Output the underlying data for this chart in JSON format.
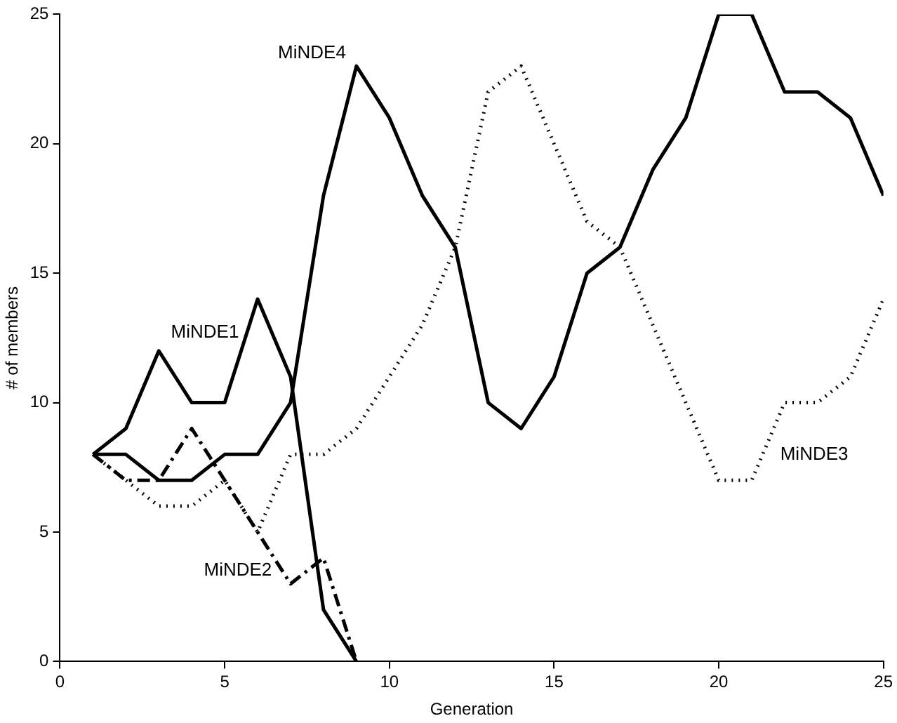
{
  "chart_data": {
    "type": "line",
    "xlabel": "Generation",
    "ylabel": "# of members",
    "x": [
      1,
      2,
      3,
      4,
      5,
      6,
      7,
      8,
      9,
      10,
      11,
      12,
      13,
      14,
      15,
      16,
      17,
      18,
      19,
      20,
      21,
      22,
      23,
      24,
      25
    ],
    "series": [
      {
        "name": "MiNDE1",
        "color": "#000000",
        "line_style": "solid",
        "values": [
          8,
          9,
          12,
          10,
          10,
          14,
          11,
          2,
          0,
          null,
          null,
          null,
          null,
          null,
          null,
          null,
          null,
          null,
          null,
          null,
          null,
          null,
          null,
          null,
          null
        ]
      },
      {
        "name": "MiNDE2",
        "color": "#000000",
        "line_style": "dashed",
        "values": [
          8,
          7,
          7,
          9,
          7,
          5,
          3,
          4,
          0,
          null,
          null,
          null,
          null,
          null,
          null,
          null,
          null,
          null,
          null,
          null,
          null,
          null,
          null,
          null,
          null
        ]
      },
      {
        "name": "MiNDE3",
        "color": "#000000",
        "line_style": "dotted",
        "values": [
          8,
          7,
          6,
          6,
          7,
          5,
          8,
          8,
          9,
          11,
          13,
          16,
          22,
          23,
          20,
          17,
          16,
          13,
          10,
          7,
          7,
          10,
          10,
          11,
          14
        ]
      },
      {
        "name": "MiNDE4",
        "color": "#000000",
        "line_style": "solid",
        "values": [
          8,
          8,
          7,
          7,
          8,
          8,
          10,
          18,
          23,
          21,
          18,
          16,
          10,
          9,
          11,
          15,
          16,
          19,
          21,
          25,
          25,
          22,
          22,
          21,
          18
        ]
      }
    ],
    "xlim": [
      0,
      25
    ],
    "xticks": [
      0,
      5,
      10,
      15,
      20,
      25
    ],
    "ylim": [
      0,
      25
    ],
    "yticks": [
      0,
      5,
      10,
      15,
      20,
      25
    ],
    "grid": false,
    "legend": false,
    "marker": "none"
  }
}
